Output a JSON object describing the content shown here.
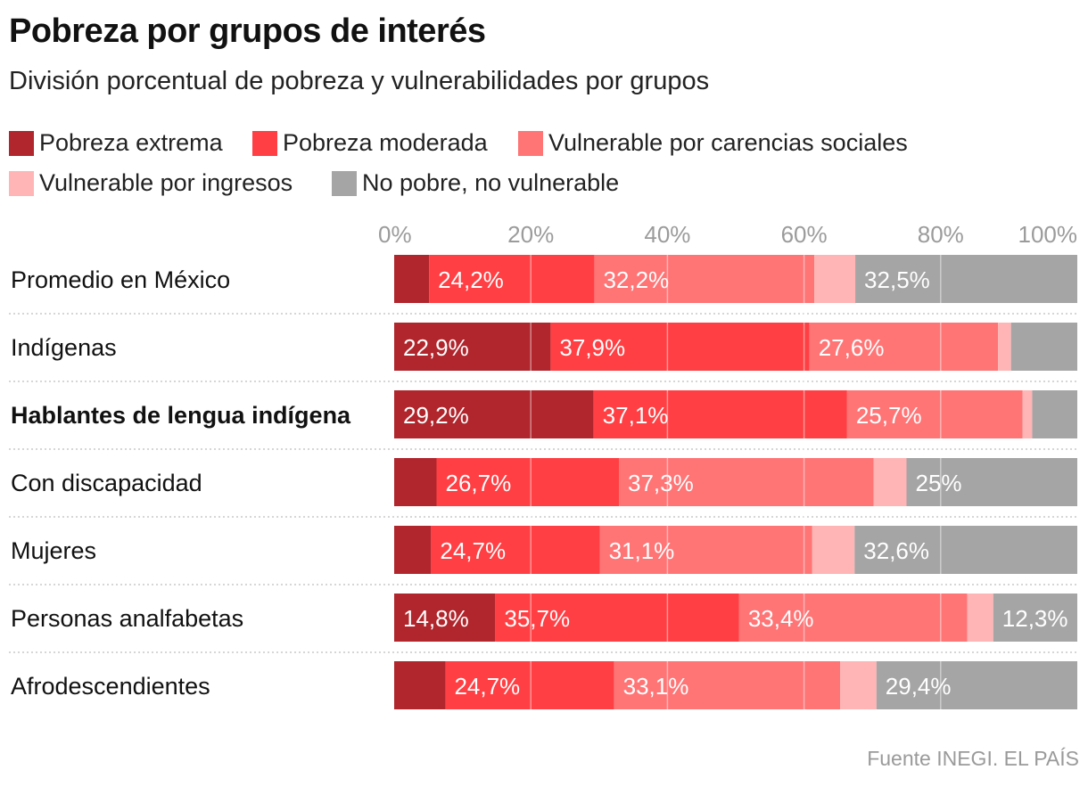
{
  "title": "Pobreza por grupos de interés",
  "subtitle": "División porcentual de pobreza y vulnerabilidades por grupos",
  "source": "Fuente INEGI. EL PAÍS",
  "chart_data": {
    "type": "bar",
    "orientation": "horizontal",
    "stacked": true,
    "xlim": [
      0,
      100
    ],
    "ticks": [
      "0%",
      "20%",
      "40%",
      "60%",
      "80%",
      "100%"
    ],
    "categories": [
      "Promedio en México",
      "Indígenas",
      "Hablantes de lengua indígena",
      "Con discapacidad",
      "Mujeres",
      "Personas analfabetas",
      "Afrodescendientes"
    ],
    "highlight": "Hablantes de lengua indígena",
    "series": [
      {
        "name": "Pobreza extrema",
        "color": "#b0262c",
        "values": [
          5.1,
          22.9,
          29.2,
          6.2,
          5.4,
          14.8,
          7.5
        ],
        "labels": [
          "",
          "22,9%",
          "29,2%",
          "",
          "",
          "14,8%",
          ""
        ]
      },
      {
        "name": "Pobreza moderada",
        "color": "#ff3f43",
        "values": [
          24.2,
          37.9,
          37.1,
          26.7,
          24.7,
          35.7,
          24.7
        ],
        "labels": [
          "24,2%",
          "37,9%",
          "37,1%",
          "26,7%",
          "24,7%",
          "35,7%",
          "24,7%"
        ]
      },
      {
        "name": "Vulnerable por carencias sociales",
        "color": "#ff7576",
        "values": [
          32.2,
          27.6,
          25.7,
          37.3,
          31.1,
          33.4,
          33.1
        ],
        "labels": [
          "32,2%",
          "27,6%",
          "25,7%",
          "37,3%",
          "31,1%",
          "33,4%",
          "33,1%"
        ]
      },
      {
        "name": "Vulnerable por ingresos",
        "color": "#ffb5b5",
        "values": [
          6.0,
          1.9,
          1.4,
          4.8,
          6.2,
          3.8,
          5.3
        ],
        "labels": [
          "",
          "",
          "",
          "",
          "",
          "",
          ""
        ]
      },
      {
        "name": "No pobre, no vulnerable",
        "color": "#a5a5a5",
        "values": [
          32.5,
          9.7,
          6.6,
          25.0,
          32.6,
          12.3,
          29.4
        ],
        "labels": [
          "32,5%",
          "",
          "",
          "25%",
          "32,6%",
          "12,3%",
          "29,4%"
        ]
      }
    ]
  }
}
